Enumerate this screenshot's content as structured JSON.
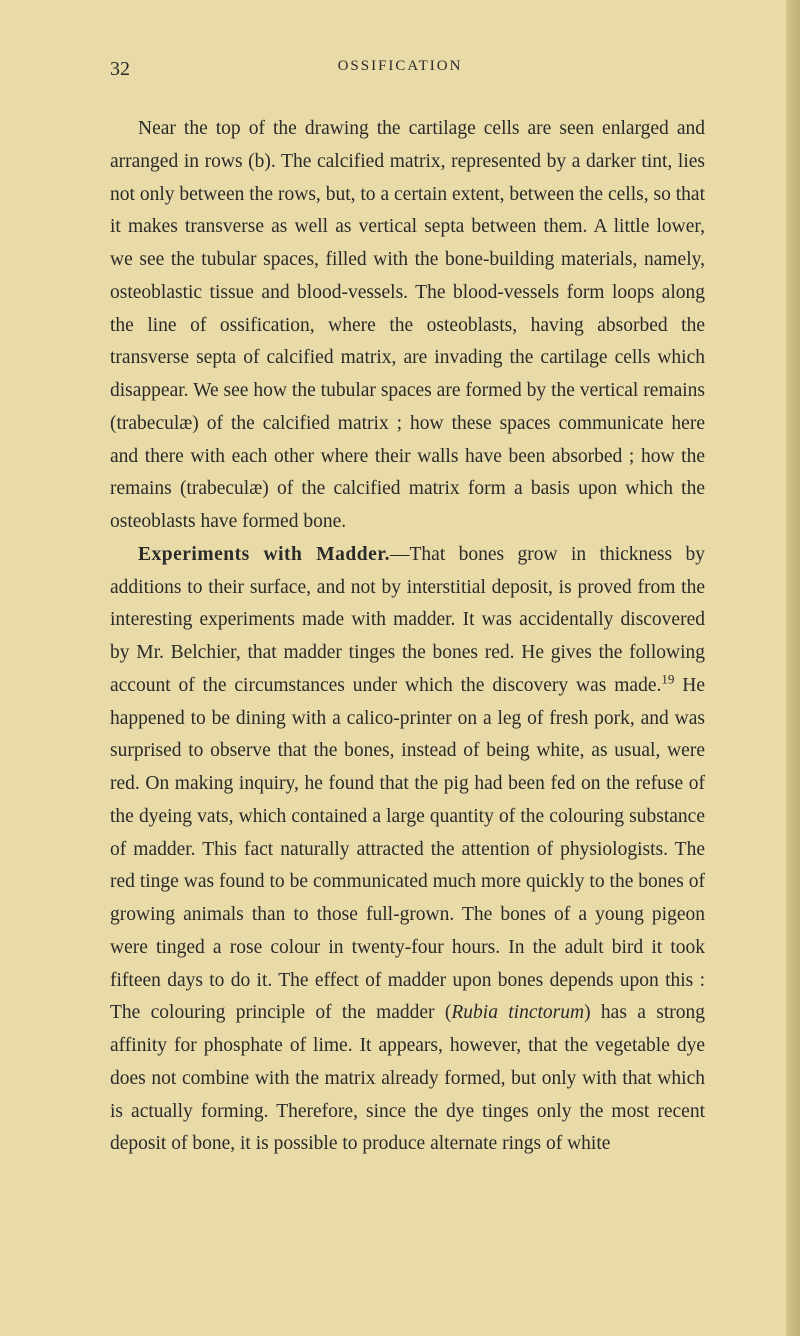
{
  "page": {
    "number": "32",
    "running_head": "OSSIFICATION"
  },
  "paragraphs": {
    "p1": "Near the top of the drawing the cartilage cells are seen enlarged and arranged in rows (b). The calcified matrix, represented by a darker tint, lies not only between the rows, but, to a certain extent, between the cells, so that it makes transverse as well as vertical septa between them. A little lower, we see the tubular spaces, filled with the bone-building materials, namely, osteoblastic tissue and blood-vessels. The blood-vessels form loops along the line of ossification, where the osteoblasts, having absorbed the transverse septa of calcified matrix, are invading the cartilage cells which disappear. We see how the tubular spaces are formed by the vertical remains (trabeculæ) of the calcified matrix ; how these spaces communicate here and there with each other where their walls have been absorbed ; how the remains (trabeculæ) of the calcified matrix form a basis upon which the osteoblasts have formed bone.",
    "p2_head": "Experiments with Madder.",
    "p2_body": "—That bones grow in thickness by additions to their surface, and not by interstitial deposit, is proved from the interesting experiments made with madder. It was accidentally discovered by Mr. Belchier, that madder tinges the bones red. He gives the following account of the circumstances under which the discovery was made.",
    "p2_footnote": "19",
    "p2_cont": " He happened to be dining with a calico-printer on a leg of fresh pork, and was surprised to observe that the bones, instead of being white, as usual, were red. On making inquiry, he found that the pig had been fed on the refuse of the dyeing vats, which contained a large quantity of the colouring substance of madder. This fact naturally attracted the attention of physiologists. The red tinge was found to be communicated much more quickly to the bones of growing animals than to those full-grown. The bones of a young pigeon were tinged a rose colour in twenty-four hours. In the adult bird it took fifteen days to do it. The effect of madder upon bones depends upon this : The colouring principle of the madder (",
    "p2_italic": "Rubia tinctorum",
    "p2_end": ") has a strong affinity for phosphate of lime. It appears, however, that the vegetable dye does not combine with the matrix already formed, but only with that which is actually forming. Therefore, since the dye tinges only the most recent deposit of bone, it is possible to produce alternate rings of white"
  },
  "colors": {
    "page_bg": "#e8dba8",
    "text": "#2a2a28",
    "edge_light": "#d4c68f",
    "edge_dark": "#bfae75"
  },
  "typography": {
    "body_fontsize": 19.5,
    "line_height": 1.68,
    "header_fontsize": 15,
    "pagenum_fontsize": 20
  }
}
